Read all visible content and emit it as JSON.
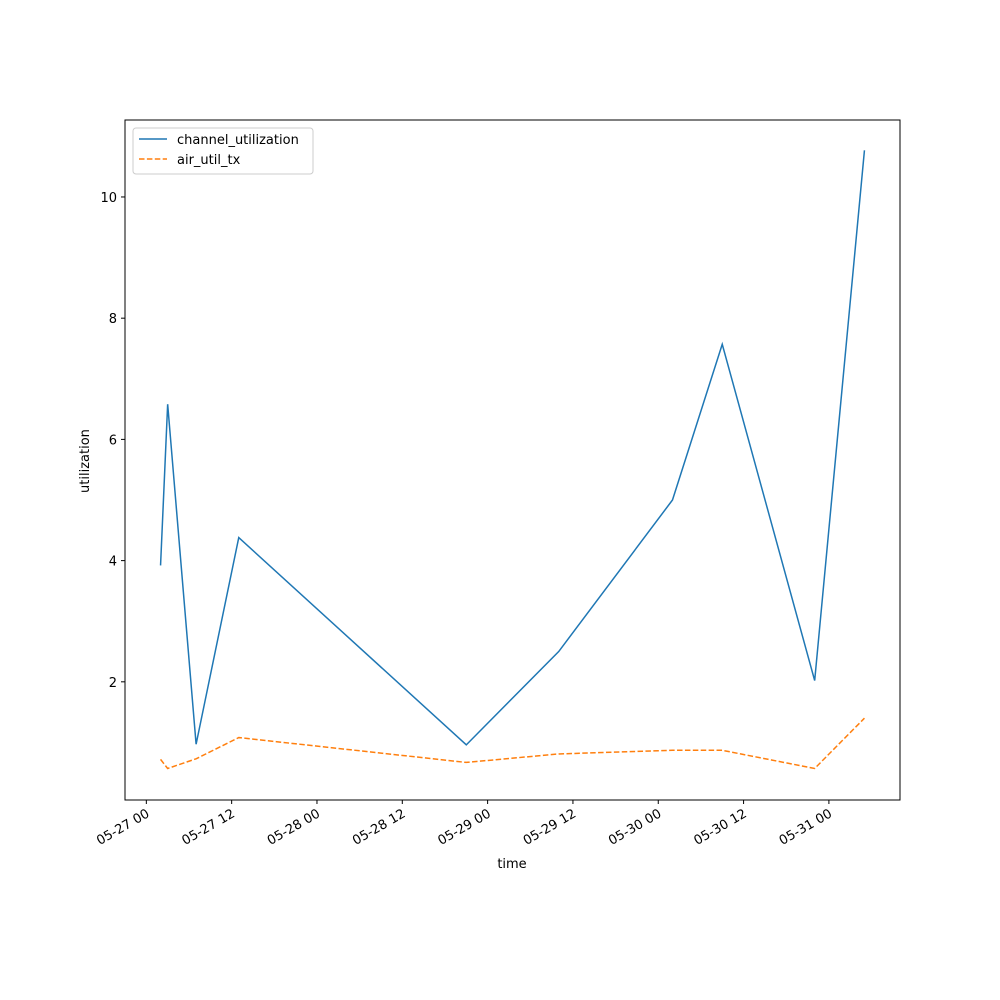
{
  "chart_data": {
    "type": "line",
    "x_label": "time",
    "y_label": "utilization",
    "x": [
      "05-27 02",
      "05-27 03",
      "05-27 07",
      "05-27 13",
      "05-28 21",
      "05-29 10",
      "05-30 02",
      "05-30 09",
      "05-30 22",
      "05-31 05"
    ],
    "series": [
      {
        "name": "channel_utilization",
        "color": "#1f77b4",
        "dash": "solid",
        "values": [
          3.92,
          6.58,
          0.97,
          4.38,
          0.96,
          2.5,
          5.0,
          7.57,
          2.02,
          10.77
        ]
      },
      {
        "name": "air_util_tx",
        "color": "#ff7f0e",
        "dash": "dashed",
        "values": [
          0.72,
          0.57,
          0.73,
          1.08,
          0.67,
          0.81,
          0.87,
          0.87,
          0.57,
          1.4
        ]
      }
    ],
    "xlim": [
      "05-26 21",
      "05-31 10"
    ],
    "xticks": [
      "05-27 00",
      "05-27 12",
      "05-28 00",
      "05-28 12",
      "05-29 00",
      "05-29 12",
      "05-30 00",
      "05-30 12",
      "05-31 00"
    ],
    "ylim": [
      0.05,
      11.27
    ],
    "yticks": [
      2,
      4,
      6,
      8,
      10
    ],
    "grid": false,
    "legend": "upper-left"
  }
}
